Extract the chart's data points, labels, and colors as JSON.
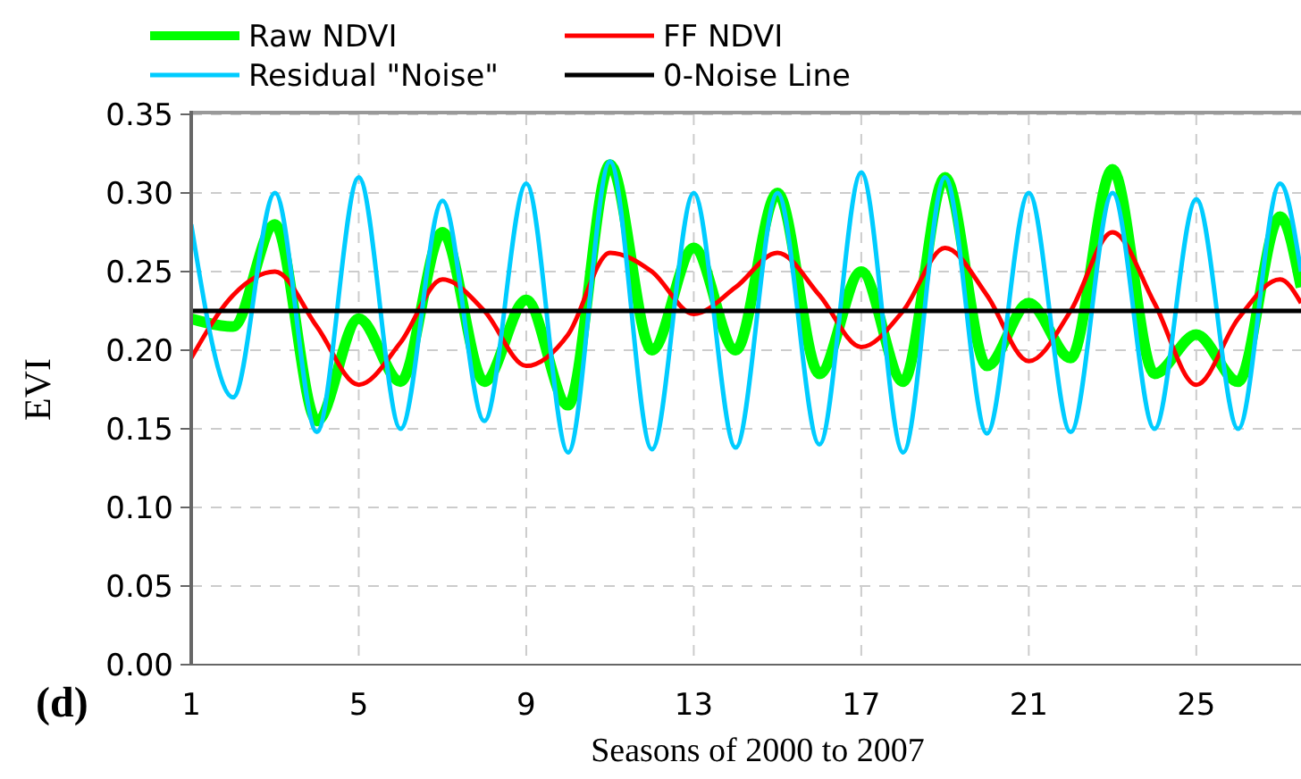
{
  "chart_data": {
    "type": "line",
    "xlabel": "Seasons of 2000 to 2007",
    "ylabel": "EVI",
    "annotations": [
      "(d)"
    ],
    "x": [
      1,
      2,
      3,
      4,
      5,
      6,
      7,
      8,
      9,
      10,
      11,
      12,
      13,
      14,
      15,
      16,
      17,
      18,
      19,
      20,
      21,
      22,
      23,
      24,
      25,
      26,
      27,
      27.5
    ],
    "series": [
      {
        "name": "Raw NDVI",
        "color": "#00ff00",
        "values": [
          0.22,
          0.215,
          0.28,
          0.155,
          0.22,
          0.18,
          0.275,
          0.18,
          0.232,
          0.165,
          0.318,
          0.2,
          0.265,
          0.2,
          0.3,
          0.185,
          0.25,
          0.18,
          0.31,
          0.19,
          0.23,
          0.195,
          0.315,
          0.185,
          0.21,
          0.18,
          0.285,
          0.24
        ]
      },
      {
        "name": "FF NDVI",
        "color": "#ff0000",
        "values": [
          0.195,
          0.235,
          0.25,
          0.215,
          0.178,
          0.205,
          0.245,
          0.225,
          0.19,
          0.21,
          0.262,
          0.25,
          0.223,
          0.24,
          0.262,
          0.235,
          0.202,
          0.225,
          0.265,
          0.235,
          0.193,
          0.225,
          0.275,
          0.23,
          0.178,
          0.22,
          0.245,
          0.23
        ]
      },
      {
        "name": "Residual \"Noise\"",
        "color": "#00ccff",
        "values": [
          0.28,
          0.17,
          0.3,
          0.148,
          0.31,
          0.15,
          0.295,
          0.155,
          0.306,
          0.135,
          0.32,
          0.137,
          0.3,
          0.138,
          0.3,
          0.14,
          0.313,
          0.135,
          0.31,
          0.147,
          0.3,
          0.148,
          0.3,
          0.15,
          0.296,
          0.15,
          0.306,
          0.25
        ]
      },
      {
        "name": "0-Noise Line",
        "color": "#000000",
        "values": [
          0.225,
          0.225,
          0.225,
          0.225,
          0.225,
          0.225,
          0.225,
          0.225,
          0.225,
          0.225,
          0.225,
          0.225,
          0.225,
          0.225,
          0.225,
          0.225,
          0.225,
          0.225,
          0.225,
          0.225,
          0.225,
          0.225,
          0.225,
          0.225,
          0.225,
          0.225,
          0.225,
          0.225
        ]
      }
    ],
    "xlim": [
      1,
      27.5
    ],
    "xticks": [
      1,
      5,
      9,
      13,
      17,
      21,
      25
    ],
    "ylim": [
      0,
      0.35
    ],
    "yticks": [
      {
        "value": 0,
        "label": "0.00"
      },
      {
        "value": 0.05,
        "label": "0.05"
      },
      {
        "value": 0.1,
        "label": "0.10"
      },
      {
        "value": 0.15,
        "label": "0.15"
      },
      {
        "value": 0.2,
        "label": "0.20"
      },
      {
        "value": 0.25,
        "label": "0.25"
      },
      {
        "value": 0.3,
        "label": "0.30"
      },
      {
        "value": 0.35,
        "label": "0.35"
      }
    ],
    "grid": true,
    "legend": "top",
    "marker": "none",
    "line_style": "solid"
  }
}
